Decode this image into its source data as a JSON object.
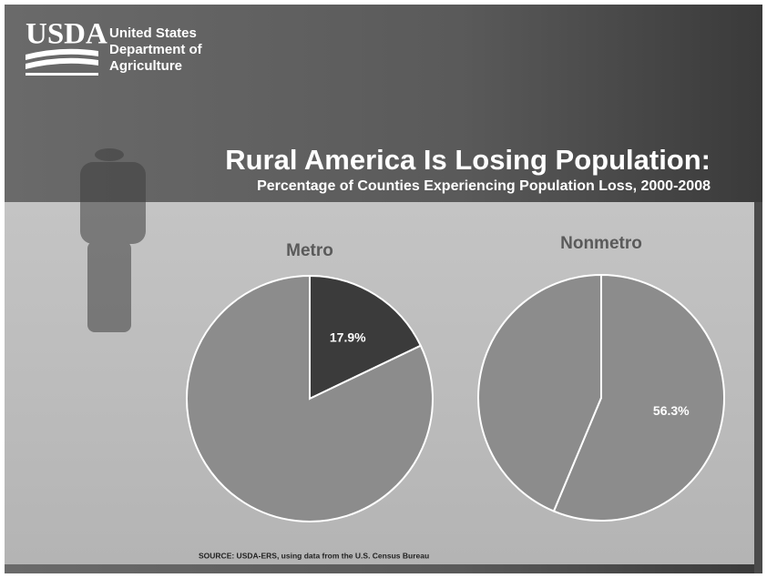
{
  "header": {
    "logo": "USDA",
    "org_lines": [
      "United States",
      "Department of",
      "Agriculture"
    ]
  },
  "title": "Rural America Is Losing Population:",
  "subtitle": "Percentage of Counties Experiencing Population Loss, 2000-2008",
  "source": "SOURCE: USDA-ERS, using data from the U.S. Census Bureau",
  "chart_data": [
    {
      "type": "pie",
      "title": "Metro",
      "values": [
        17.9,
        82.1
      ],
      "value_labels": [
        "17.9%",
        null
      ],
      "colors": [
        "#3b3b3b",
        "#8c8c8c"
      ]
    },
    {
      "type": "pie",
      "title": "Nonmetro",
      "values": [
        56.3,
        43.7
      ],
      "value_labels": [
        "56.3%",
        null
      ],
      "colors": [
        "#8c8c8c",
        "#8c8c8c"
      ]
    }
  ]
}
